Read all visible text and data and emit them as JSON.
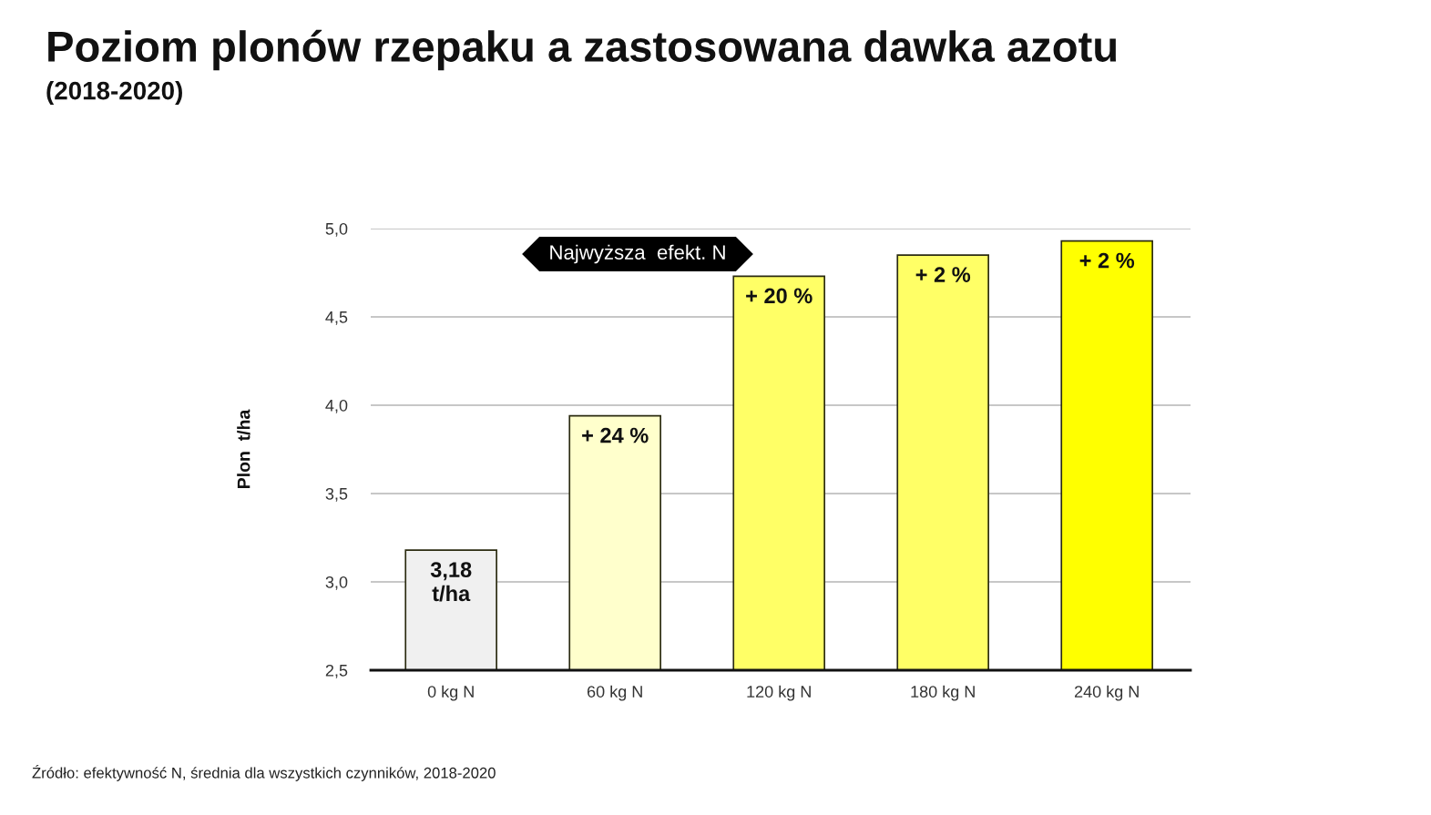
{
  "chart_data": {
    "type": "bar",
    "title": "Poziom plonów rzepaku a zastosowana dawka azotu",
    "subtitle": "(2018-2020)",
    "ylabel": "Plon  t/ha",
    "categories": [
      "0 kg N",
      "60 kg N",
      "120 kg N",
      "180 kg N",
      "240 kg N"
    ],
    "values": [
      3.18,
      3.94,
      4.73,
      4.85,
      4.93
    ],
    "colors": [
      "#f0f0f0",
      "#ffffcc",
      "#ffff66",
      "#ffff66",
      "#ffff00"
    ],
    "value_labels": [
      "3,18\nt/ha",
      null,
      null,
      null,
      null
    ],
    "ylim": [
      2.5,
      5.0
    ],
    "yticks": [
      {
        "value": 2.5,
        "label": "2,5"
      },
      {
        "value": 3.0,
        "label": "3,0"
      },
      {
        "value": 3.5,
        "label": "3,5"
      },
      {
        "value": 4.0,
        "label": "4,0"
      },
      {
        "value": 4.5,
        "label": "4,5"
      },
      {
        "value": 5.0,
        "label": "5,0"
      }
    ],
    "grid": "y",
    "annotations": [
      {
        "text": "+ 24 %",
        "x": "60 kg N",
        "y": 3.94
      },
      {
        "text": "+ 20 %",
        "x": "120 kg N",
        "y": 4.73
      },
      {
        "text": "+ 2 %",
        "x": "180 kg N",
        "y": 4.85
      },
      {
        "text": "+ 2 %",
        "x": "240 kg N",
        "y": 4.93
      },
      "Najwyższa  efekt. N",
      "Źródło: efektywność N, średnia dla wszystkich czynników, 2018-2020"
    ]
  }
}
